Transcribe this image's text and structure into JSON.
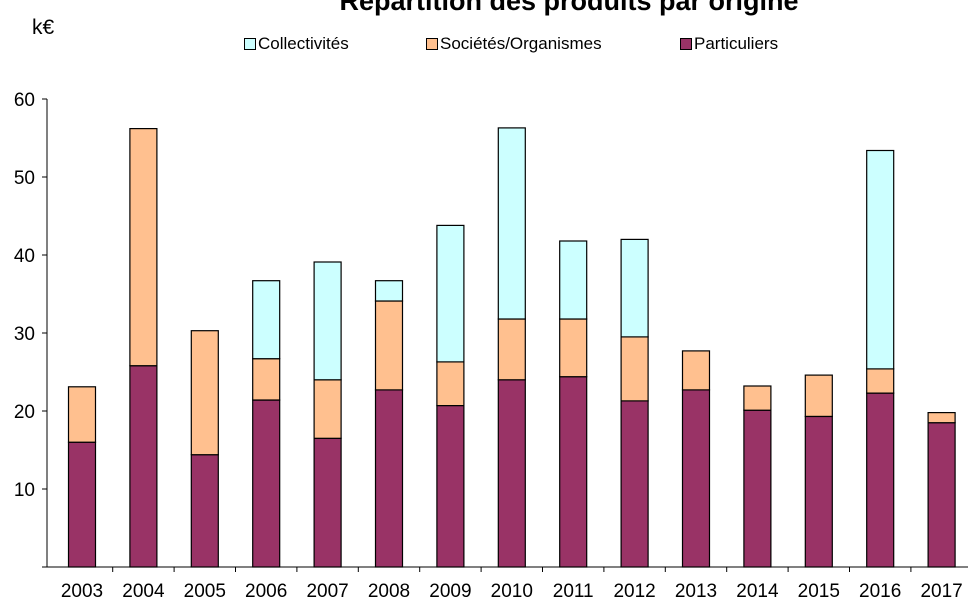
{
  "unit_label": "k€",
  "colors": {
    "collectivites": "#ccffff",
    "societes": "#ffc08f",
    "particuliers": "#993366",
    "axis": "#000000"
  },
  "chart_data": {
    "type": "bar",
    "stacked": true,
    "title": "Répartition des produits par origine",
    "xlabel": "",
    "ylabel": "k€",
    "ylim": [
      0,
      60
    ],
    "yticks": [
      10,
      20,
      30,
      40,
      50,
      60
    ],
    "grid": false,
    "legend_position": "top",
    "categories": [
      "2003",
      "2004",
      "2005",
      "2006",
      "2007",
      "2008",
      "2009",
      "2010",
      "2011",
      "2012",
      "2013",
      "2014",
      "2015",
      "2016",
      "2017"
    ],
    "series": [
      {
        "name": "Particuliers",
        "color": "#993366",
        "values": [
          16.0,
          25.8,
          14.4,
          21.4,
          16.5,
          22.7,
          20.7,
          24.0,
          24.4,
          21.3,
          22.7,
          20.1,
          19.3,
          22.3,
          18.5
        ]
      },
      {
        "name": "Sociétés/Organismes",
        "color": "#ffc08f",
        "values": [
          7.1,
          30.4,
          15.9,
          5.3,
          7.5,
          11.4,
          5.6,
          7.8,
          7.4,
          8.2,
          5.0,
          3.1,
          5.3,
          3.1,
          1.3
        ]
      },
      {
        "name": "Collectivités",
        "color": "#ccffff",
        "values": [
          0,
          0,
          0,
          10.0,
          15.1,
          2.6,
          17.5,
          24.5,
          10.0,
          12.5,
          0,
          0,
          0,
          28.0,
          0
        ]
      }
    ],
    "legend_order": [
      "Collectivités",
      "Sociétés/Organismes",
      "Particuliers"
    ]
  }
}
